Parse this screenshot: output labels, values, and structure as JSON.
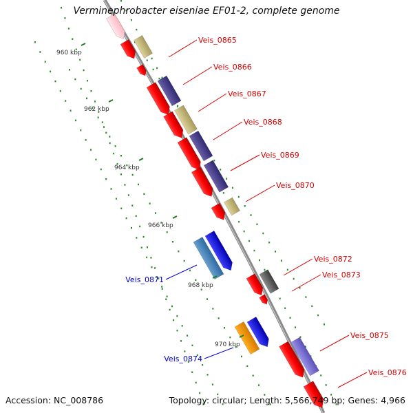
{
  "title": "Verminephrobacter eiseniae EF01-2, complete genome",
  "footer": {
    "accession": "Accession: NC_008786",
    "topology": "Topology: circular; Length: 5,566,749 bp; Genes: 4,966"
  },
  "colors": {
    "forward_strand_label": "#d40000",
    "reverse_strand_label": "#0000c8",
    "backbone": "#888888",
    "tick": "#1f7a1f"
  },
  "scale_ticks": [
    {
      "label": "960 kbp",
      "kbp": 960
    },
    {
      "label": "962 kbp",
      "kbp": 962
    },
    {
      "label": "964 kbp",
      "kbp": 964
    },
    {
      "label": "966 kbp",
      "kbp": 966
    },
    {
      "label": "968 kbp",
      "kbp": 968
    },
    {
      "label": "970 kbp",
      "kbp": 970
    }
  ],
  "gene_labels": [
    {
      "label": "Veis_0865",
      "strand": "forward"
    },
    {
      "label": "Veis_0866",
      "strand": "forward"
    },
    {
      "label": "Veis_0867",
      "strand": "forward"
    },
    {
      "label": "Veis_0868",
      "strand": "forward"
    },
    {
      "label": "Veis_0869",
      "strand": "forward"
    },
    {
      "label": "Veis_0870",
      "strand": "forward"
    },
    {
      "label": "Veis_0871",
      "strand": "reverse"
    },
    {
      "label": "Veis_0872",
      "strand": "forward"
    },
    {
      "label": "Veis_0873",
      "strand": "forward"
    },
    {
      "label": "Veis_0874",
      "strand": "reverse"
    },
    {
      "label": "Veis_0875",
      "strand": "forward"
    },
    {
      "label": "Veis_0876",
      "strand": "forward"
    }
  ]
}
